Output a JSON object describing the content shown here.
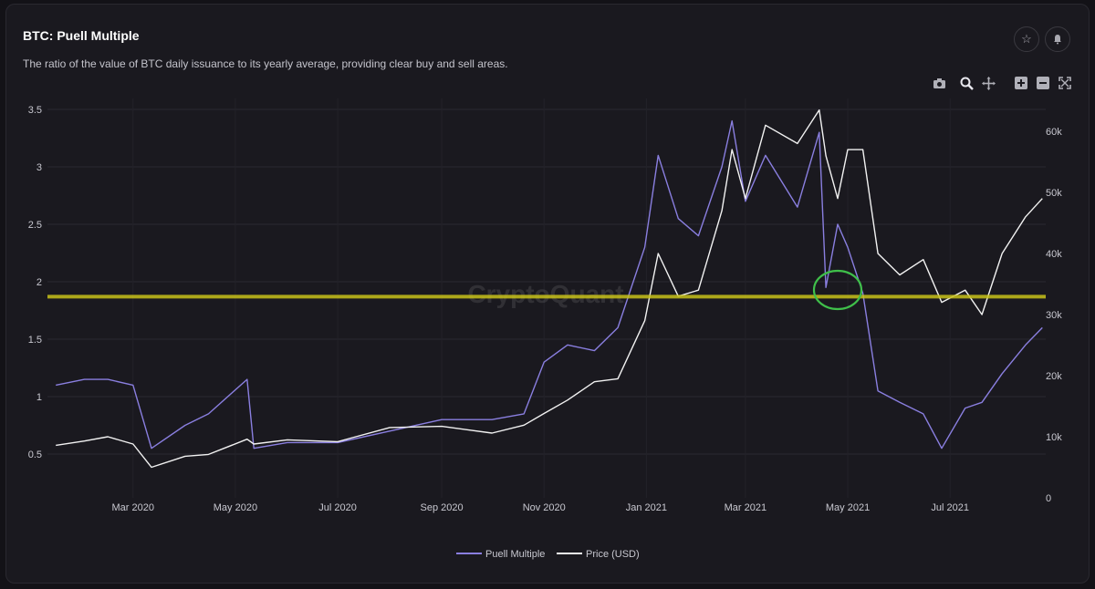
{
  "header": {
    "title": "BTC: Puell Multiple",
    "description": "The ratio of the value of BTC daily issuance to its yearly average, providing clear buy and sell areas."
  },
  "buttons": {
    "star_icon": "star-icon",
    "bell_icon": "bell-icon"
  },
  "toolbar": [
    "camera-icon",
    "zoom-icon",
    "pan-icon",
    "zoom-in-icon",
    "zoom-out-icon",
    "autoscale-icon"
  ],
  "watermark": "CryptoQuant",
  "colors": {
    "background": "#1a191f",
    "puell": "#8a7fe0",
    "price": "#f2f2f2",
    "threshold": "#c8c21a",
    "highlight": "#3fbf4a"
  },
  "chart_data": {
    "type": "line",
    "x_ticks": [
      "Mar 2020",
      "May 2020",
      "Jul 2020",
      "Sep 2020",
      "Nov 2020",
      "Jan 2021",
      "Mar 2021",
      "May 2021",
      "Jul 2021"
    ],
    "y_left_ticks": [
      "0.5",
      "1",
      "1.5",
      "2",
      "2.5",
      "3",
      "3.5"
    ],
    "y_left_range": [
      0.15,
      3.55
    ],
    "y_right_ticks": [
      "0",
      "10k",
      "20k",
      "30k",
      "40k",
      "50k",
      "60k"
    ],
    "y_right_range": [
      0,
      60000
    ],
    "x": [
      "2020-01-15",
      "2020-02-01",
      "2020-02-15",
      "2020-03-01",
      "2020-03-12",
      "2020-04-01",
      "2020-04-15",
      "2020-05-08",
      "2020-05-12",
      "2020-06-01",
      "2020-07-01",
      "2020-08-01",
      "2020-09-01",
      "2020-10-01",
      "2020-10-20",
      "2020-11-01",
      "2020-11-15",
      "2020-12-01",
      "2020-12-15",
      "2020-12-31",
      "2021-01-08",
      "2021-01-20",
      "2021-02-01",
      "2021-02-15",
      "2021-02-21",
      "2021-03-01",
      "2021-03-13",
      "2021-04-01",
      "2021-04-14",
      "2021-04-18",
      "2021-04-25",
      "2021-05-01",
      "2021-05-10",
      "2021-05-19",
      "2021-06-01",
      "2021-06-15",
      "2021-06-26",
      "2021-07-10",
      "2021-07-20",
      "2021-08-01",
      "2021-08-15",
      "2021-08-25"
    ],
    "series": [
      {
        "name": "Puell Multiple",
        "axis": "left",
        "values": [
          1.1,
          1.15,
          1.15,
          1.1,
          0.55,
          0.75,
          0.85,
          1.15,
          0.55,
          0.6,
          0.6,
          0.7,
          0.8,
          0.8,
          0.85,
          1.3,
          1.45,
          1.4,
          1.6,
          2.3,
          3.1,
          2.55,
          2.4,
          3.0,
          3.4,
          2.7,
          3.1,
          2.65,
          3.3,
          1.95,
          2.5,
          2.3,
          1.9,
          1.05,
          0.95,
          0.85,
          0.55,
          0.9,
          0.95,
          1.2,
          1.45,
          1.6
        ]
      },
      {
        "name": "Price (USD)",
        "axis": "right",
        "values": [
          8600,
          9300,
          10000,
          8800,
          5000,
          6800,
          7100,
          9600,
          8800,
          9500,
          9200,
          11500,
          11700,
          10600,
          11900,
          13800,
          16000,
          19000,
          19500,
          29000,
          40000,
          33000,
          34000,
          47000,
          57000,
          49000,
          61000,
          58000,
          63500,
          56000,
          49000,
          57000,
          57000,
          40000,
          36500,
          39000,
          32000,
          34000,
          30000,
          40000,
          46000,
          49000
        ]
      }
    ],
    "threshold": 1.87,
    "legend_position": "bottom-center"
  }
}
